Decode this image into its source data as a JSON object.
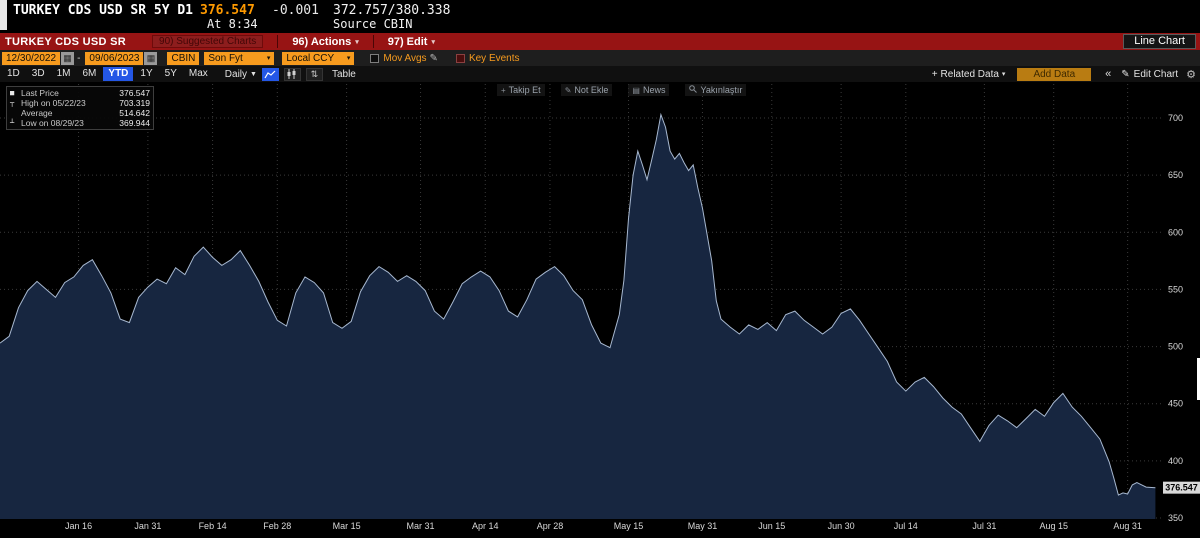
{
  "top_bar": {
    "security_line": "TURKEY CDS USD SR 5Y D1",
    "last_price": "376.547",
    "change": "-0.001",
    "bid_ask": "372.757/380.338",
    "time": "At 8:34",
    "source": "Source CBIN"
  },
  "title_bar": {
    "title": "TURKEY CDS USD SR",
    "suggested_charts": "90) Suggested Charts",
    "actions_label": "96) Actions",
    "edit_label": "97) Edit",
    "view_label": "Line Chart"
  },
  "toolbar": {
    "date_from": "12/30/2022",
    "date_to": "09/06/2023",
    "range_sep": "-",
    "source_field": "CBIN",
    "price_field": "Son Fyt",
    "currency_field": "Local CCY",
    "mov_avgs_label": "Mov Avgs",
    "key_events_label": "Key Events",
    "periods": [
      "1D",
      "3D",
      "1M",
      "6M",
      "YTD",
      "1Y",
      "5Y",
      "Max"
    ],
    "active_period": "YTD",
    "frequency": "Daily",
    "table_label": "Table",
    "related_data_label": "Related Data",
    "add_data_label": "Add Data",
    "collapse_label": "«",
    "edit_chart_label": "Edit Chart"
  },
  "overlay_toolbar": {
    "items": [
      {
        "icon": "crosshair",
        "label": "Takip Et"
      },
      {
        "icon": "pencil",
        "label": "Not Ekle"
      },
      {
        "icon": "news",
        "label": "News"
      },
      {
        "icon": "magnifier",
        "label": "Yakınlaştır"
      }
    ]
  },
  "legend": {
    "rows": [
      {
        "marker": "■",
        "label": "Last Price",
        "value": "376.547"
      },
      {
        "marker": "┬",
        "label": "High on 05/22/23",
        "value": "703.319"
      },
      {
        "marker": "",
        "label": "Average",
        "value": "514.642"
      },
      {
        "marker": "┴",
        "label": "Low on 08/29/23",
        "value": "369.944"
      }
    ]
  },
  "chart_data": {
    "type": "area",
    "title": "TURKEY CDS USD SR 5Y - Last Price (YTD, Daily)",
    "x_start_date": "12/30/2022",
    "x_end_date": "09/06/2023",
    "ylim": [
      340,
      720
    ],
    "yticks": [
      350,
      400,
      450,
      500,
      550,
      600,
      650,
      700
    ],
    "xticklabels": [
      "Jan 16",
      "Jan 31",
      "Feb 14",
      "Feb 28",
      "Mar 15",
      "Mar 31",
      "Apr 14",
      "Apr 28",
      "May 15",
      "May 31",
      "Jun 15",
      "Jun 30",
      "Jul 14",
      "Jul 31",
      "Aug 15",
      "Aug 31"
    ],
    "xtick_days": [
      17,
      32,
      46,
      60,
      75,
      91,
      105,
      119,
      136,
      152,
      167,
      182,
      196,
      213,
      228,
      244
    ],
    "x_domain_days": [
      0,
      251
    ],
    "last_price": 376.547,
    "stats": {
      "last": 376.547,
      "high": 703.319,
      "high_date": "05/22/23",
      "average": 514.642,
      "low": 369.944,
      "low_date": "08/29/23"
    },
    "points": [
      [
        0,
        503
      ],
      [
        2,
        509
      ],
      [
        4,
        534
      ],
      [
        6,
        549
      ],
      [
        8,
        557
      ],
      [
        10,
        550
      ],
      [
        12,
        543
      ],
      [
        14,
        556
      ],
      [
        16,
        561
      ],
      [
        18,
        571
      ],
      [
        20,
        576
      ],
      [
        22,
        562
      ],
      [
        24,
        547
      ],
      [
        26,
        524
      ],
      [
        28,
        521
      ],
      [
        30,
        543
      ],
      [
        32,
        552
      ],
      [
        34,
        559
      ],
      [
        36,
        555
      ],
      [
        38,
        569
      ],
      [
        40,
        563
      ],
      [
        42,
        579
      ],
      [
        44,
        587
      ],
      [
        46,
        578
      ],
      [
        48,
        571
      ],
      [
        50,
        576
      ],
      [
        52,
        584
      ],
      [
        54,
        571
      ],
      [
        56,
        557
      ],
      [
        58,
        539
      ],
      [
        60,
        523
      ],
      [
        62,
        518
      ],
      [
        64,
        547
      ],
      [
        66,
        561
      ],
      [
        68,
        556
      ],
      [
        70,
        547
      ],
      [
        72,
        521
      ],
      [
        74,
        516
      ],
      [
        76,
        522
      ],
      [
        78,
        548
      ],
      [
        80,
        562
      ],
      [
        82,
        570
      ],
      [
        84,
        565
      ],
      [
        86,
        557
      ],
      [
        88,
        562
      ],
      [
        90,
        557
      ],
      [
        92,
        549
      ],
      [
        94,
        531
      ],
      [
        96,
        524
      ],
      [
        98,
        539
      ],
      [
        100,
        555
      ],
      [
        102,
        561
      ],
      [
        104,
        566
      ],
      [
        106,
        561
      ],
      [
        108,
        549
      ],
      [
        110,
        531
      ],
      [
        112,
        526
      ],
      [
        114,
        541
      ],
      [
        116,
        559
      ],
      [
        118,
        565
      ],
      [
        120,
        570
      ],
      [
        122,
        562
      ],
      [
        124,
        549
      ],
      [
        126,
        541
      ],
      [
        128,
        519
      ],
      [
        130,
        503
      ],
      [
        132,
        499
      ],
      [
        134,
        528
      ],
      [
        135,
        558
      ],
      [
        136,
        612
      ],
      [
        137,
        650
      ],
      [
        138,
        671
      ],
      [
        139,
        659
      ],
      [
        140,
        646
      ],
      [
        141,
        663
      ],
      [
        142,
        681
      ],
      [
        143,
        703
      ],
      [
        144,
        692
      ],
      [
        145,
        671
      ],
      [
        146,
        664
      ],
      [
        147,
        669
      ],
      [
        148,
        661
      ],
      [
        149,
        654
      ],
      [
        150,
        659
      ],
      [
        151,
        639
      ],
      [
        152,
        621
      ],
      [
        153,
        598
      ],
      [
        154,
        575
      ],
      [
        155,
        540
      ],
      [
        156,
        524
      ],
      [
        158,
        517
      ],
      [
        160,
        511
      ],
      [
        162,
        519
      ],
      [
        164,
        515
      ],
      [
        166,
        521
      ],
      [
        168,
        514
      ],
      [
        170,
        528
      ],
      [
        172,
        531
      ],
      [
        174,
        523
      ],
      [
        176,
        517
      ],
      [
        178,
        511
      ],
      [
        180,
        517
      ],
      [
        182,
        529
      ],
      [
        184,
        533
      ],
      [
        186,
        523
      ],
      [
        188,
        511
      ],
      [
        190,
        499
      ],
      [
        192,
        487
      ],
      [
        194,
        469
      ],
      [
        196,
        461
      ],
      [
        198,
        469
      ],
      [
        200,
        473
      ],
      [
        202,
        465
      ],
      [
        204,
        455
      ],
      [
        206,
        447
      ],
      [
        208,
        441
      ],
      [
        210,
        429
      ],
      [
        212,
        417
      ],
      [
        214,
        431
      ],
      [
        216,
        440
      ],
      [
        218,
        435
      ],
      [
        220,
        429
      ],
      [
        222,
        437
      ],
      [
        224,
        445
      ],
      [
        226,
        439
      ],
      [
        228,
        451
      ],
      [
        230,
        459
      ],
      [
        232,
        447
      ],
      [
        234,
        439
      ],
      [
        236,
        429
      ],
      [
        238,
        419
      ],
      [
        240,
        399
      ],
      [
        241,
        385
      ],
      [
        242,
        370
      ],
      [
        243,
        372
      ],
      [
        244,
        371
      ],
      [
        245,
        379
      ],
      [
        246,
        381
      ],
      [
        248,
        377
      ],
      [
        250,
        376.5
      ]
    ]
  },
  "colors": {
    "red_bar": "#971414",
    "amber": "#f79b1e",
    "active_blue": "#2457e6",
    "area_fill": "#172640",
    "area_line": "#a7b8d0",
    "price_orange": "#ff9a00",
    "grid": "#3a3a3a"
  }
}
